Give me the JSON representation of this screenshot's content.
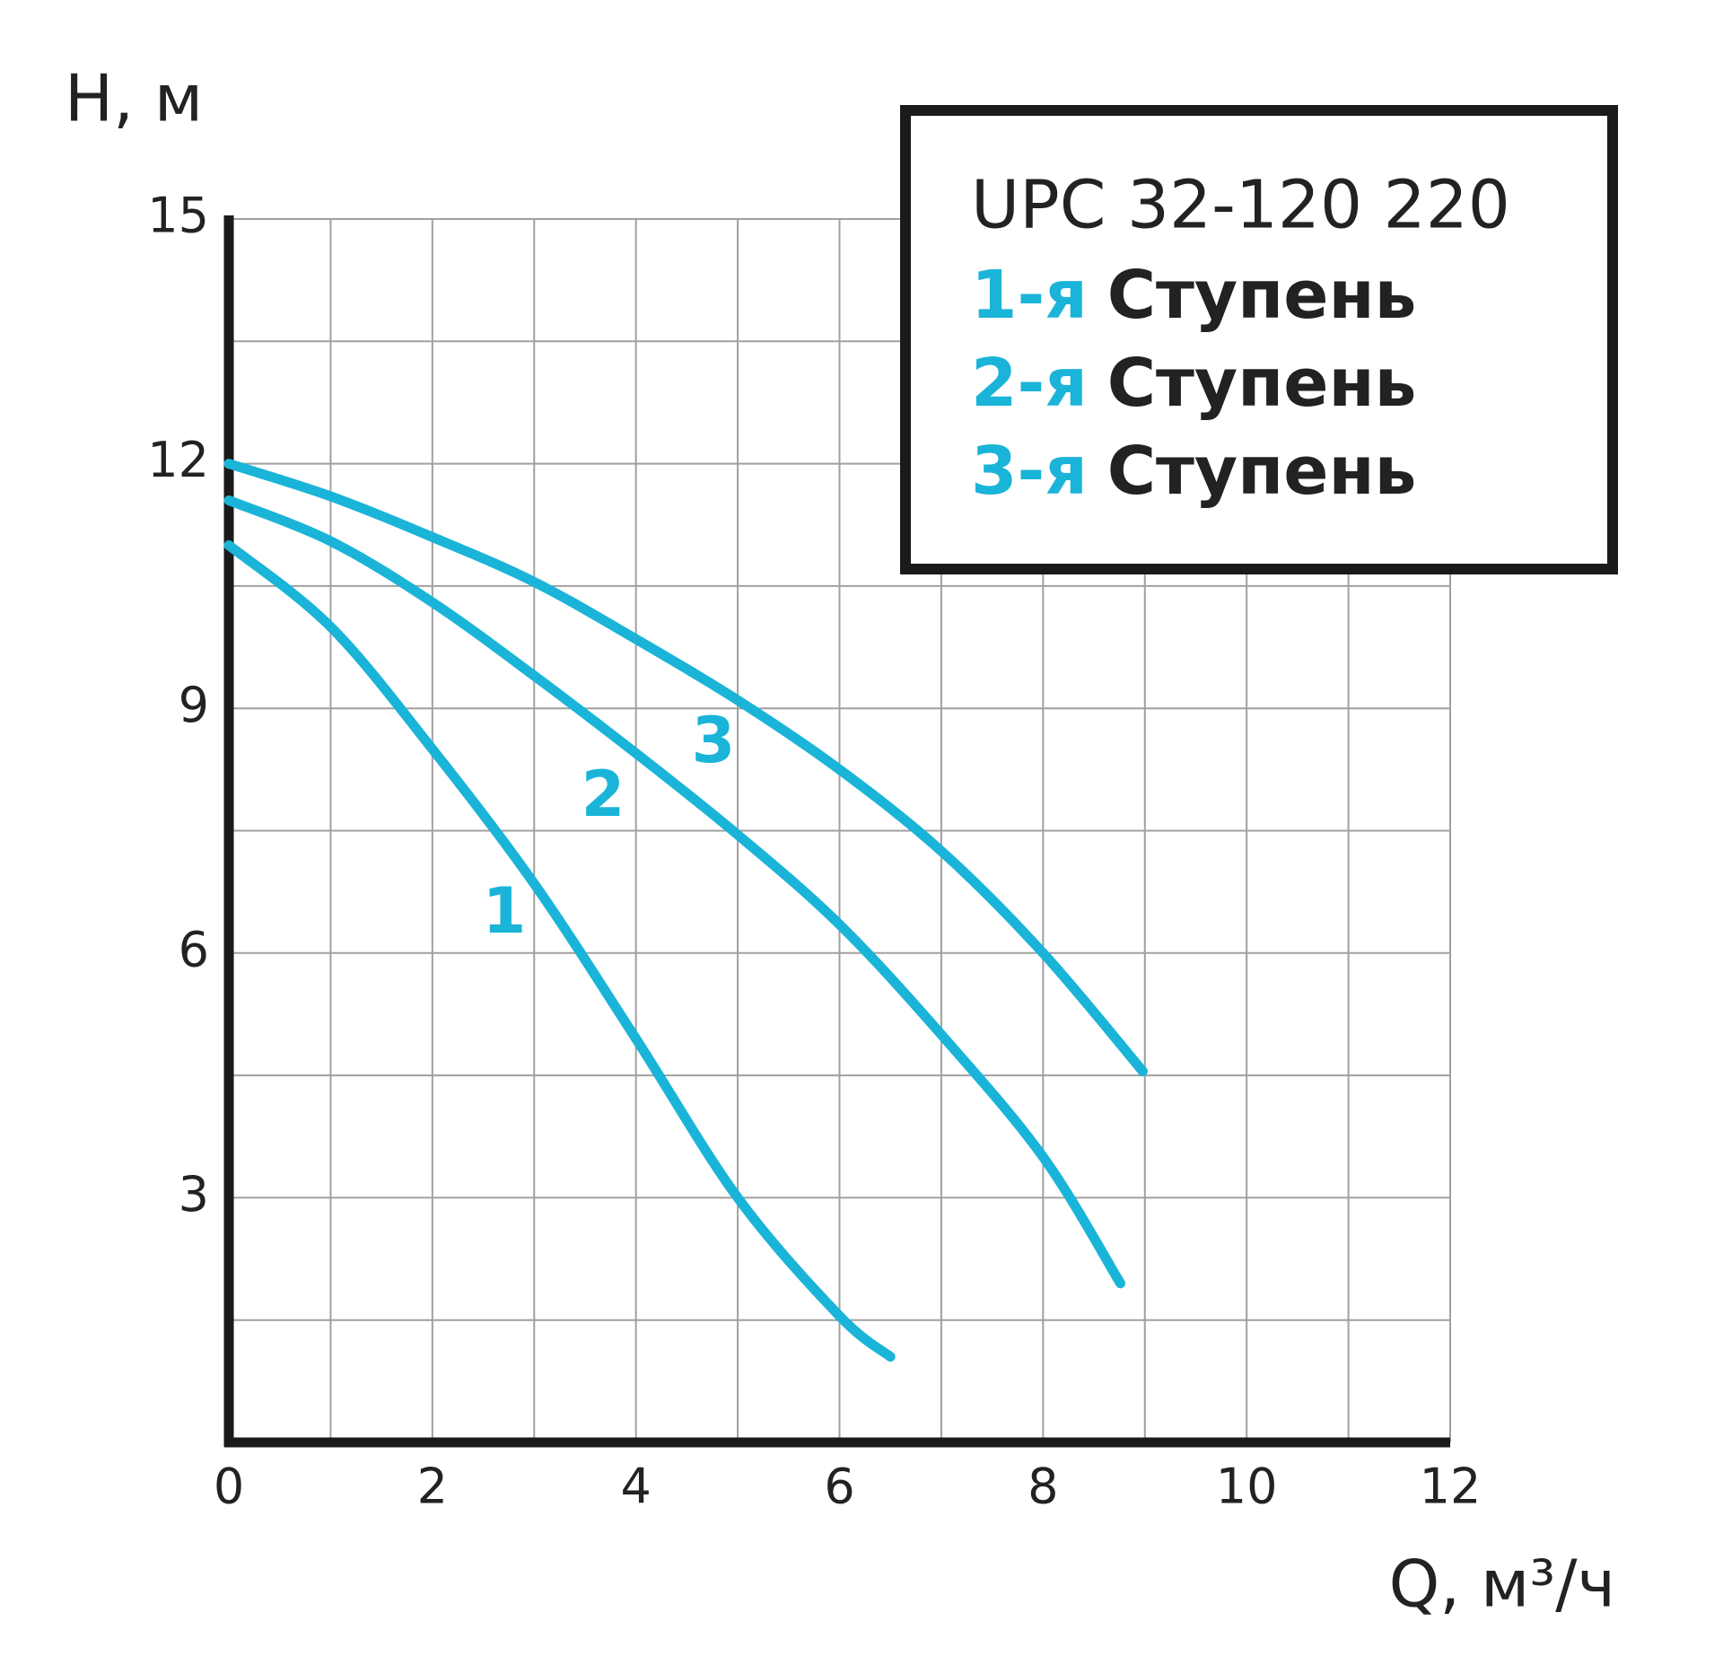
{
  "chart_data": {
    "type": "line",
    "y_label": "H, м",
    "x_label": "Q, м³/ч",
    "xlim": [
      0,
      12
    ],
    "xticks": [
      0,
      2,
      4,
      6,
      8,
      10,
      12
    ],
    "ylim": [
      0,
      15
    ],
    "yticks": [
      3,
      6,
      9,
      12,
      15
    ],
    "grid": true,
    "legend": {
      "title": "UPC 32-120 220",
      "position": "upper right",
      "entries": [
        {
          "marker": "1-я",
          "text": "Ступень"
        },
        {
          "marker": "2-я",
          "text": "Ступень"
        },
        {
          "marker": "3-я",
          "text": "Ступень"
        }
      ]
    },
    "series": [
      {
        "name": "1",
        "color": "#1ab4d8",
        "x": [
          0,
          1,
          2,
          3,
          4,
          5,
          6,
          6.5
        ],
        "values": [
          11.0,
          10.0,
          8.5,
          6.85,
          4.95,
          3.0,
          1.55,
          1.05
        ]
      },
      {
        "name": "2",
        "color": "#1ab4d8",
        "x": [
          0,
          1,
          2,
          3,
          4,
          5,
          6,
          7,
          8,
          8.76
        ],
        "values": [
          11.55,
          11.05,
          10.3,
          9.4,
          8.45,
          7.45,
          6.35,
          5.0,
          3.5,
          1.95
        ]
      },
      {
        "name": "3",
        "color": "#1ab4d8",
        "x": [
          0,
          1,
          2,
          3,
          4,
          5,
          6,
          7,
          8,
          8.98
        ],
        "values": [
          12.0,
          11.6,
          11.1,
          10.55,
          9.85,
          9.1,
          8.25,
          7.25,
          6.0,
          4.55
        ]
      }
    ]
  }
}
